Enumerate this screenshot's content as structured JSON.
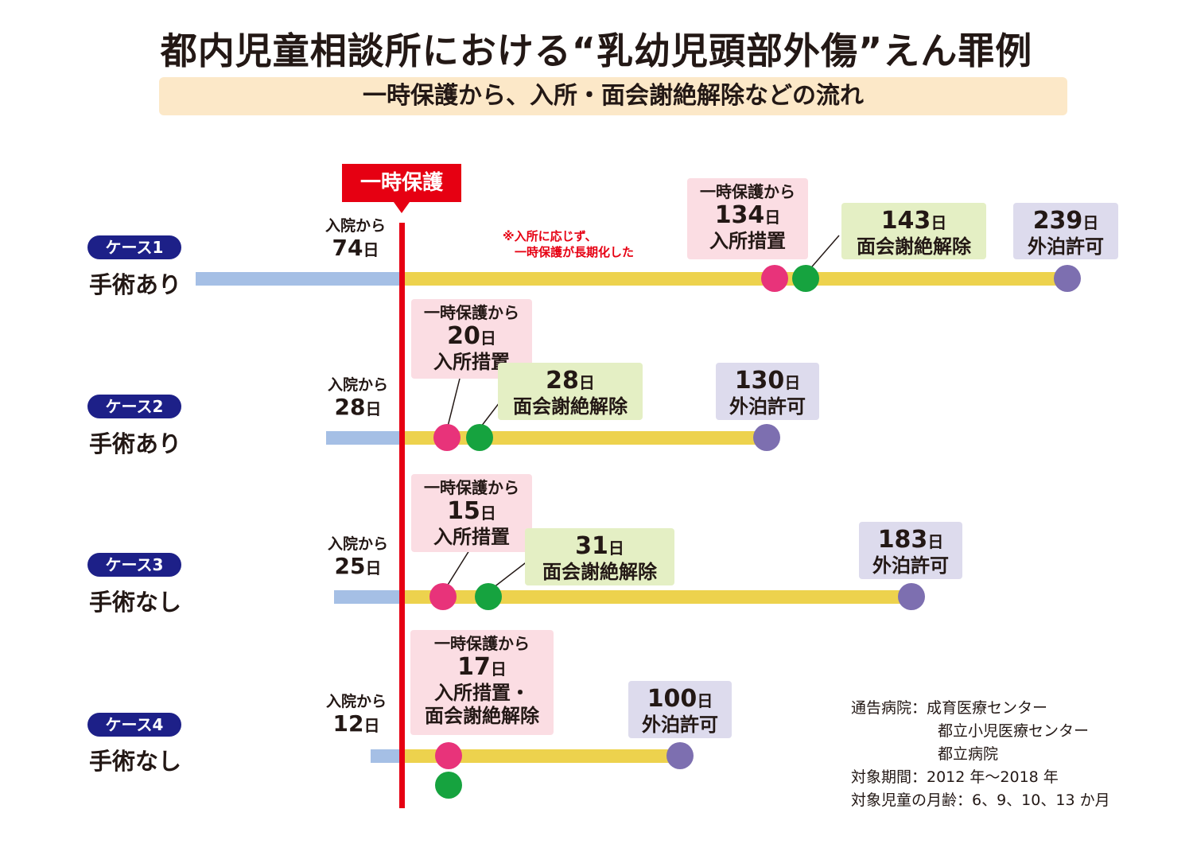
{
  "title": "都内児童相談所における“乳幼児頭部外傷”えん罪例",
  "subtitle": "一時保護から、入所・面会謝絶解除などの流れ",
  "ichiji_label": "一時保護",
  "colors": {
    "red": "#e60012",
    "navy": "#1d2088",
    "blue_bar": "#a5bfe5",
    "yellow_bar": "#edd24d",
    "pink": "#e8337a",
    "green": "#16a33f",
    "purple": "#7d6fb0"
  },
  "cases": [
    {
      "badge": "ケース1",
      "surgery": "手術あり",
      "admission": {
        "prefix": "入院から",
        "num": "74",
        "unit": "日"
      },
      "note": [
        "※入所に応じず、",
        "　一時保護が長期化した"
      ],
      "admit": {
        "prefix": "一時保護から",
        "num": "134",
        "unit": "日",
        "label": "入所措置"
      },
      "visit": {
        "num": "143",
        "unit": "日",
        "label": "面会謝絶解除"
      },
      "leave": {
        "num": "239",
        "unit": "日",
        "label": "外泊許可"
      }
    },
    {
      "badge": "ケース2",
      "surgery": "手術あり",
      "admission": {
        "prefix": "入院から",
        "num": "28",
        "unit": "日"
      },
      "admit": {
        "prefix": "一時保護から",
        "num": "20",
        "unit": "日",
        "label": "入所措置"
      },
      "visit": {
        "num": "28",
        "unit": "日",
        "label": "面会謝絶解除"
      },
      "leave": {
        "num": "130",
        "unit": "日",
        "label": "外泊許可"
      }
    },
    {
      "badge": "ケース3",
      "surgery": "手術なし",
      "admission": {
        "prefix": "入院から",
        "num": "25",
        "unit": "日"
      },
      "admit": {
        "prefix": "一時保護から",
        "num": "15",
        "unit": "日",
        "label": "入所措置"
      },
      "visit": {
        "num": "31",
        "unit": "日",
        "label": "面会謝絶解除"
      },
      "leave": {
        "num": "183",
        "unit": "日",
        "label": "外泊許可"
      }
    },
    {
      "badge": "ケース4",
      "surgery": "手術なし",
      "admission": {
        "prefix": "入院から",
        "num": "12",
        "unit": "日"
      },
      "admit": {
        "prefix": "一時保護から",
        "num": "17",
        "unit": "日",
        "label1": "入所措置・",
        "label2": "面会謝絶解除"
      },
      "leave": {
        "num": "100",
        "unit": "日",
        "label": "外泊許可"
      }
    }
  ],
  "info": {
    "hospital_label": "通告病院：",
    "hospitals": [
      "成育医療センター",
      "都立小児医療センター",
      "都立病院"
    ],
    "period": "対象期間：2012 年～2018 年",
    "ages": "対象児童の月齢：6、9、10、13 か月"
  }
}
